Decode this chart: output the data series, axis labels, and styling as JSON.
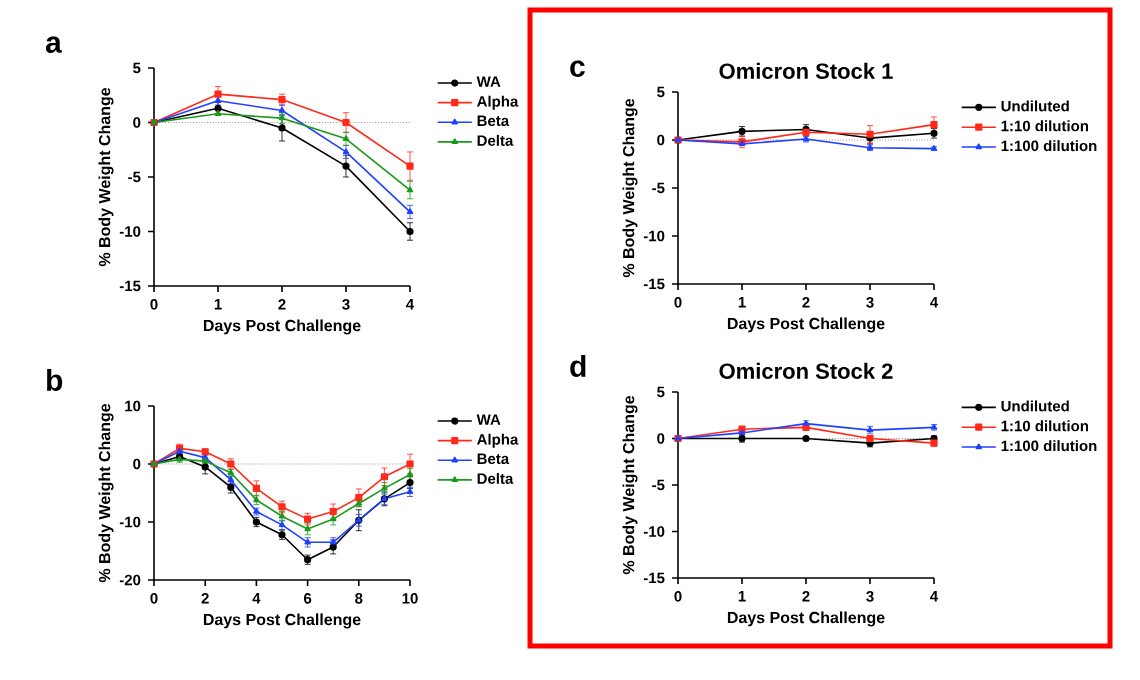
{
  "chart_data": [
    {
      "type": "line",
      "annotations": [
        "a"
      ],
      "xlabel": "Days Post Challenge",
      "ylabel": "% Body Weight Change",
      "x": [
        0,
        1,
        2,
        3,
        4
      ],
      "xlim": [
        0,
        4
      ],
      "ylim": [
        -15,
        5
      ],
      "xticks": [
        0,
        1,
        2,
        3,
        4
      ],
      "yticks": [
        -15,
        -10,
        -5,
        0,
        5
      ],
      "legend": "right",
      "ref_lines": [
        {
          "axis": "y",
          "value": 0,
          "line_style": "dotted"
        }
      ],
      "series": [
        {
          "name": "WA",
          "color": "#000000",
          "marker": "circle",
          "values": [
            0,
            1.3,
            -0.5,
            -4,
            -10
          ],
          "errors": [
            null,
            0.6,
            1.2,
            1.0,
            0.8
          ]
        },
        {
          "name": "Alpha",
          "color": "#ff2a1a",
          "marker": "square",
          "values": [
            0,
            2.6,
            2.1,
            0,
            -4
          ],
          "errors": [
            null,
            0.7,
            0.5,
            0.9,
            1.3
          ]
        },
        {
          "name": "Beta",
          "color": "#2040ff",
          "marker": "triangle",
          "values": [
            0,
            2,
            1.1,
            -2.7,
            -8.2
          ],
          "errors": [
            null,
            0.4,
            0.5,
            0.6,
            0.6
          ]
        },
        {
          "name": "Delta",
          "color": "#1a9a1a",
          "marker": "triangle",
          "values": [
            0,
            0.8,
            0.4,
            -1.5,
            -6.2
          ],
          "errors": [
            null,
            null,
            0.5,
            0.6,
            0.8
          ]
        }
      ]
    },
    {
      "type": "line",
      "annotations": [
        "b"
      ],
      "xlabel": "Days Post Challenge",
      "ylabel": "% Body Weight Change",
      "x": [
        0,
        1,
        2,
        3,
        4,
        5,
        6,
        7,
        8,
        9,
        10
      ],
      "xlim": [
        0,
        10
      ],
      "ylim": [
        -20,
        10
      ],
      "xticks": [
        0,
        2,
        4,
        6,
        8,
        10
      ],
      "yticks": [
        -20,
        -10,
        0,
        10
      ],
      "legend": "right",
      "ref_lines": [
        {
          "axis": "y",
          "value": 0,
          "line_style": "dotted"
        }
      ],
      "series": [
        {
          "name": "WA",
          "color": "#000000",
          "marker": "circle",
          "values": [
            0,
            1.3,
            -0.5,
            -4,
            -10,
            -12.2,
            -16.5,
            -14.3,
            -9.7,
            -6,
            -3.2
          ],
          "errors": [
            null,
            0.6,
            1.2,
            1,
            0.8,
            0.8,
            0.8,
            1.2,
            1.8,
            1.2,
            1
          ]
        },
        {
          "name": "Alpha",
          "color": "#ff2a1a",
          "marker": "square",
          "values": [
            0,
            2.7,
            2.1,
            0,
            -4.2,
            -7.4,
            -9.5,
            -8.2,
            -5.8,
            -2.2,
            0
          ],
          "errors": [
            null,
            0.7,
            0.5,
            0.9,
            1.3,
            1,
            1,
            1.3,
            1.5,
            1.5,
            1.7
          ]
        },
        {
          "name": "Beta",
          "color": "#2040ff",
          "marker": "triangle",
          "values": [
            0,
            2.2,
            1.1,
            -2.7,
            -8.2,
            -10.5,
            -13.5,
            -13.5,
            -9.7,
            -6,
            -4.8
          ],
          "errors": [
            null,
            0.5,
            0.5,
            0.6,
            0.6,
            0.8,
            0.8,
            0.8,
            1,
            1,
            0.8
          ]
        },
        {
          "name": "Delta",
          "color": "#1a9a1a",
          "marker": "triangle",
          "values": [
            0,
            0.8,
            0.5,
            -1.5,
            -6.2,
            -9,
            -11.2,
            -9.5,
            -6.8,
            -4.2,
            -1.8
          ],
          "errors": [
            null,
            0.5,
            0.5,
            0.6,
            0.8,
            0.8,
            1,
            1,
            0.6,
            1,
            1
          ]
        }
      ]
    },
    {
      "type": "line",
      "annotations": [
        "c"
      ],
      "title": "Omicron Stock 1",
      "xlabel": "Days Post Challenge",
      "ylabel": "% Body Weight Change",
      "x": [
        0,
        1,
        2,
        3,
        4
      ],
      "xlim": [
        0,
        4
      ],
      "ylim": [
        -15,
        5
      ],
      "xticks": [
        0,
        1,
        2,
        3,
        4
      ],
      "yticks": [
        -15,
        -10,
        -5,
        0,
        5
      ],
      "legend": "right",
      "ref_lines": [
        {
          "axis": "y",
          "value": 0,
          "line_style": "dotted"
        }
      ],
      "series": [
        {
          "name": "Undiluted",
          "color": "#000000",
          "marker": "circle",
          "values": [
            0,
            0.9,
            1.1,
            0.2,
            0.7
          ],
          "errors": [
            null,
            0.5,
            0.5,
            0.6,
            0.5
          ]
        },
        {
          "name": "1:10 dilution",
          "color": "#ff2a1a",
          "marker": "square",
          "values": [
            0,
            -0.2,
            0.8,
            0.6,
            1.6
          ],
          "errors": [
            null,
            0.6,
            0.4,
            0.9,
            0.8
          ]
        },
        {
          "name": "1:100 dilution",
          "color": "#2040ff",
          "marker": "triangle",
          "values": [
            0,
            -0.4,
            0.1,
            -0.8,
            -0.9
          ],
          "errors": [
            null,
            null,
            0.3,
            0.3,
            0.2
          ]
        }
      ]
    },
    {
      "type": "line",
      "annotations": [
        "d"
      ],
      "title": "Omicron Stock 2",
      "xlabel": "Days Post Challenge",
      "ylabel": "% Body Weight Change",
      "x": [
        0,
        1,
        2,
        3,
        4
      ],
      "xlim": [
        0,
        4
      ],
      "ylim": [
        -15,
        5
      ],
      "xticks": [
        0,
        1,
        2,
        3,
        4
      ],
      "yticks": [
        -15,
        -10,
        -5,
        0,
        5
      ],
      "legend": "right",
      "ref_lines": [
        {
          "axis": "y",
          "value": 0,
          "line_style": "dotted"
        }
      ],
      "series": [
        {
          "name": "Undiluted",
          "color": "#000000",
          "marker": "circle",
          "values": [
            0,
            0,
            0,
            -0.5,
            0
          ],
          "errors": [
            null,
            0.4,
            0.2,
            0.4,
            0.3
          ]
        },
        {
          "name": "1:10 dilution",
          "color": "#ff2a1a",
          "marker": "square",
          "values": [
            0,
            1,
            1.2,
            0,
            -0.5
          ],
          "errors": [
            null,
            0.3,
            0.3,
            0.3,
            0.3
          ]
        },
        {
          "name": "1:100 dilution",
          "color": "#2040ff",
          "marker": "triangle",
          "values": [
            0,
            0.6,
            1.6,
            0.9,
            1.2
          ],
          "errors": [
            null,
            0.3,
            0.3,
            0.4,
            0.3
          ]
        }
      ]
    }
  ]
}
